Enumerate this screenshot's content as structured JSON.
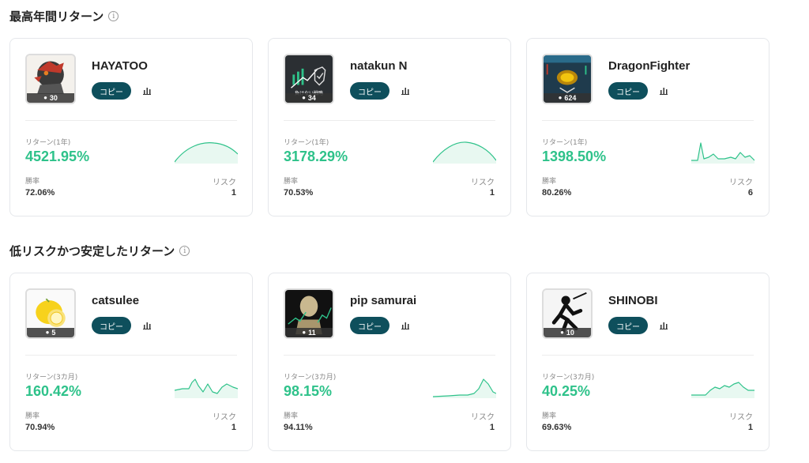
{
  "sections": [
    {
      "title": "最高年間リターン",
      "cards": [
        {
          "name": "HAYATOO",
          "followers": "30",
          "copy_label": "コピー",
          "return_label": "リターン(1年)",
          "return_value": "4521.95%",
          "winrate_label": "勝率",
          "winrate": "72.06%",
          "risk_label": "リスク",
          "risk": "1",
          "spark_shape": "hill"
        },
        {
          "name": "natakun N",
          "followers": "34",
          "copy_label": "コピー",
          "return_label": "リターン(1年)",
          "return_value": "3178.29%",
          "winrate_label": "勝率",
          "winrate": "70.53%",
          "risk_label": "リスク",
          "risk": "1",
          "spark_shape": "hill"
        },
        {
          "name": "DragonFighter",
          "followers": "624",
          "copy_label": "コピー",
          "return_label": "リターン(1年)",
          "return_value": "1398.50%",
          "winrate_label": "勝率",
          "winrate": "80.26%",
          "risk_label": "リスク",
          "risk": "6",
          "spark_shape": "spike"
        }
      ]
    },
    {
      "title": "低リスクかつ安定したリターン",
      "cards": [
        {
          "name": "catsulee",
          "followers": "5",
          "copy_label": "コピー",
          "return_label": "リターン(3カ月)",
          "return_value": "160.42%",
          "winrate_label": "勝率",
          "winrate": "70.94%",
          "risk_label": "リスク",
          "risk": "1",
          "spark_shape": "wave"
        },
        {
          "name": "pip samurai",
          "followers": "11",
          "copy_label": "コピー",
          "return_label": "リターン(3カ月)",
          "return_value": "98.15%",
          "winrate_label": "勝率",
          "winrate": "94.11%",
          "risk_label": "リスク",
          "risk": "1",
          "spark_shape": "late-peak"
        },
        {
          "name": "SHINOBI",
          "followers": "10",
          "copy_label": "コピー",
          "return_label": "リターン(3カ月)",
          "return_value": "40.25%",
          "winrate_label": "勝率",
          "winrate": "69.63%",
          "risk_label": "リスク",
          "risk": "1",
          "spark_shape": "plateau"
        }
      ]
    }
  ],
  "avatar_texts": {
    "natakun": "負けない戦略"
  },
  "colors": {
    "accent": "#2ec28a",
    "button": "#0e4f5c"
  }
}
